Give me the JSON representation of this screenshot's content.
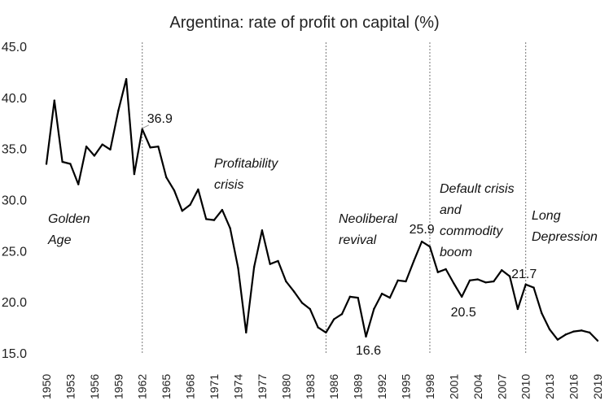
{
  "chart_data": {
    "type": "line",
    "title": "Argentina: rate of profit on capital (%)",
    "xlabel": "",
    "ylabel": "",
    "ylim": [
      15.0,
      45.0
    ],
    "y_ticks": [
      "15.0",
      "20.0",
      "25.0",
      "30.0",
      "35.0",
      "40.0",
      "45.0"
    ],
    "x_ticks": [
      1950,
      1953,
      1956,
      1959,
      1962,
      1965,
      1968,
      1971,
      1974,
      1977,
      1980,
      1983,
      1986,
      1989,
      1992,
      1995,
      1998,
      2001,
      2004,
      2007,
      2010,
      2013,
      2016,
      2019
    ],
    "grid": false,
    "x": [
      1950,
      1951,
      1952,
      1953,
      1954,
      1955,
      1956,
      1957,
      1958,
      1959,
      1960,
      1961,
      1962,
      1963,
      1964,
      1965,
      1966,
      1967,
      1968,
      1969,
      1970,
      1971,
      1972,
      1973,
      1974,
      1975,
      1976,
      1977,
      1978,
      1979,
      1980,
      1981,
      1982,
      1983,
      1984,
      1985,
      1986,
      1987,
      1988,
      1989,
      1990,
      1991,
      1992,
      1993,
      1994,
      1995,
      1996,
      1997,
      1998,
      1999,
      2000,
      2001,
      2002,
      2003,
      2004,
      2005,
      2006,
      2007,
      2008,
      2009,
      2010,
      2011,
      2012,
      2013,
      2014,
      2015,
      2016,
      2017,
      2018,
      2019
    ],
    "values": [
      33.5,
      39.7,
      33.7,
      33.5,
      31.5,
      35.2,
      34.3,
      35.4,
      34.9,
      38.7,
      41.8,
      32.5,
      36.9,
      35.1,
      35.2,
      32.2,
      30.9,
      28.9,
      29.5,
      31.0,
      28.1,
      28.0,
      29.0,
      27.2,
      23.3,
      17.0,
      23.4,
      27.0,
      23.7,
      24.0,
      22.0,
      21.0,
      19.9,
      19.3,
      17.5,
      17.0,
      18.3,
      18.8,
      20.5,
      20.4,
      16.6,
      19.3,
      20.8,
      20.4,
      22.1,
      22.0,
      24.0,
      25.9,
      25.4,
      22.9,
      23.2,
      21.8,
      20.5,
      22.1,
      22.2,
      21.9,
      22.0,
      23.1,
      22.5,
      19.3,
      21.7,
      21.4,
      18.9,
      17.3,
      16.3,
      16.8,
      17.1,
      17.2,
      17.0,
      16.2
    ],
    "data_labels": [
      {
        "x": 1962,
        "text": "36.9"
      },
      {
        "x": 1990,
        "text": "16.6"
      },
      {
        "x": 1997,
        "text": "25.9"
      },
      {
        "x": 2002,
        "text": "20.5"
      },
      {
        "x": 2010,
        "text": "21.7"
      }
    ],
    "dividers": [
      1962,
      1985,
      1998,
      2010
    ],
    "periods": [
      {
        "lines": [
          "Golden",
          "Age"
        ]
      },
      {
        "lines": [
          "Profitability",
          "crisis"
        ]
      },
      {
        "lines": [
          "Neoliberal",
          "revival"
        ]
      },
      {
        "lines": [
          "Default crisis",
          "and",
          "commodity",
          "boom"
        ]
      },
      {
        "lines": [
          "Long",
          "Depression"
        ]
      }
    ],
    "colors": {
      "line": "#000000",
      "divider": "#777777",
      "leader": "#999999"
    }
  }
}
